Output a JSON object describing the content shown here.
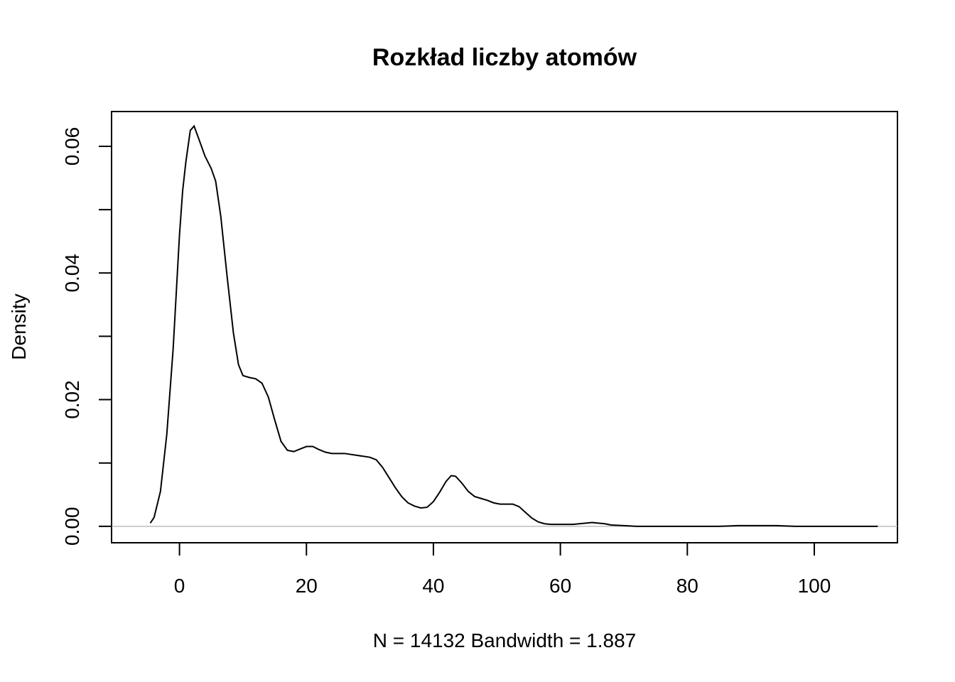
{
  "chart_data": {
    "type": "line",
    "title": "Rozkład liczby atomów",
    "xlabel": "N = 14132   Bandwidth = 1.887",
    "ylabel": "Density",
    "xlim": [
      -10.7,
      113.1
    ],
    "ylim": [
      -0.0026,
      0.0655
    ],
    "x_ticks": [
      0,
      20,
      40,
      60,
      80,
      100
    ],
    "x_tick_labels": [
      "0",
      "20",
      "40",
      "60",
      "80",
      "100"
    ],
    "y_ticks": [
      0.0,
      0.01,
      0.02,
      0.03,
      0.04,
      0.05,
      0.06
    ],
    "y_tick_labels": [
      "0.00",
      "",
      "0.02",
      "",
      "0.04",
      "",
      "0.06"
    ],
    "grid": false,
    "baseline": 0,
    "series": [
      {
        "x": [
          -4.6,
          -4.0,
          -3.0,
          -2.0,
          -1.0,
          0.0,
          0.5,
          1.0,
          1.7,
          2.3,
          3.0,
          4.0,
          5.0,
          5.7,
          6.5,
          7.5,
          8.5,
          9.3,
          10.0,
          11.0,
          12.0,
          13.0,
          14.0,
          15.0,
          16.0,
          17.0,
          18.0,
          19.0,
          20.0,
          21.0,
          22.0,
          23.0,
          24.0,
          26.0,
          28.0,
          30.0,
          31.0,
          32.0,
          33.0,
          34.0,
          35.0,
          36.0,
          37.0,
          38.0,
          39.0,
          40.0,
          41.0,
          42.0,
          42.8,
          43.5,
          44.5,
          45.5,
          46.5,
          47.5,
          48.5,
          49.5,
          50.5,
          51.5,
          52.5,
          53.5,
          54.5,
          55.5,
          56.5,
          57.5,
          58.5,
          60.0,
          62.0,
          64.0,
          65.0,
          66.0,
          67.0,
          68.0,
          70.0,
          72.0,
          75.0,
          80.0,
          85.0,
          88.0,
          90.0,
          92.0,
          94.0,
          97.0,
          100.0,
          105.0,
          110.0
        ],
        "values": [
          0.0005,
          0.0014,
          0.0055,
          0.0145,
          0.028,
          0.046,
          0.053,
          0.0575,
          0.0625,
          0.0632,
          0.0613,
          0.0585,
          0.0565,
          0.0545,
          0.049,
          0.0395,
          0.0305,
          0.0255,
          0.0238,
          0.0235,
          0.0233,
          0.0226,
          0.0204,
          0.0168,
          0.0134,
          0.012,
          0.0118,
          0.0122,
          0.0126,
          0.0126,
          0.0121,
          0.0117,
          0.0115,
          0.0115,
          0.0112,
          0.0109,
          0.0105,
          0.0093,
          0.0077,
          0.0061,
          0.0047,
          0.0037,
          0.0032,
          0.0029,
          0.003,
          0.0039,
          0.0054,
          0.0071,
          0.008,
          0.0079,
          0.0068,
          0.0055,
          0.0047,
          0.0044,
          0.0041,
          0.0037,
          0.0035,
          0.0035,
          0.0035,
          0.0031,
          0.0022,
          0.0013,
          0.0007,
          0.0004,
          0.0003,
          0.0003,
          0.0003,
          0.0005,
          0.0006,
          0.0005,
          0.0004,
          0.0002,
          0.0001,
          0.0,
          0.0,
          0.0,
          0.0,
          0.0001,
          0.0001,
          0.0001,
          0.0001,
          0.0,
          0.0,
          0.0,
          0.0
        ]
      }
    ]
  }
}
